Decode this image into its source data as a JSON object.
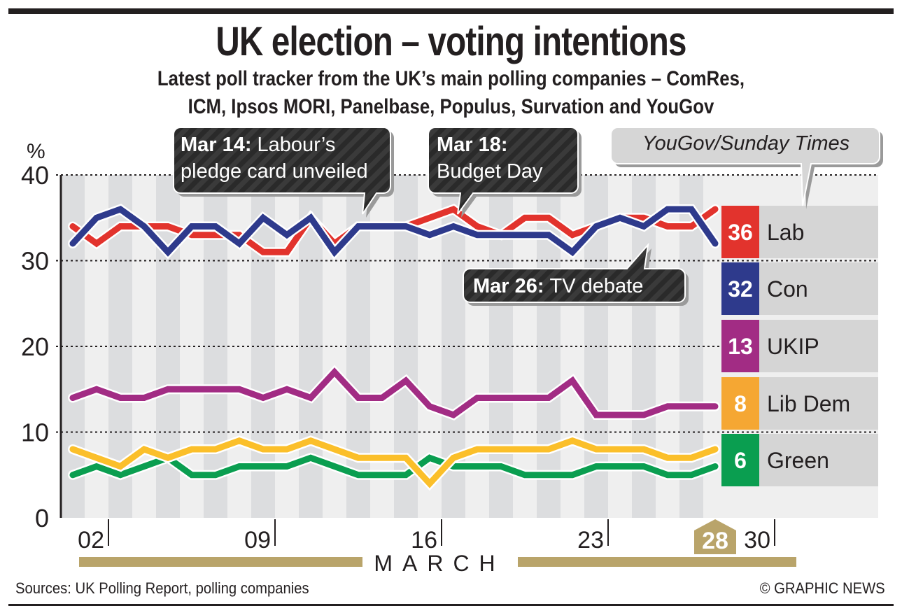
{
  "header": {
    "title": "UK election – voting intentions",
    "subtitle_line1": "Latest poll tracker from the UK’s main polling companies – ComRes,",
    "subtitle_line2": "ICM, Ipsos MORI, Panelbase, Populus, Survation and YouGov"
  },
  "footer": {
    "sources": "Sources: UK Polling Report, polling companies",
    "credit": "© GRAPHIC NEWS"
  },
  "colors": {
    "Lab": "#e2332d",
    "Con": "#2e3a8c",
    "UKIP": "#a22c84",
    "Lib Dem": "#fbbf2a",
    "Green": "#0a9e50",
    "Lib Dem box": "#f5a733",
    "accent_tan": "#b9a46a"
  },
  "chart_data": {
    "type": "line",
    "title": "UK election – voting intentions",
    "ylabel": "%",
    "xlabel": "MARCH",
    "ylim": [
      0,
      40
    ],
    "yticks": [
      0,
      10,
      20,
      30,
      40
    ],
    "grid": "dotted horizontal at 10, 20, 30, 40",
    "x": [
      1,
      2,
      3,
      4,
      5,
      6,
      7,
      8,
      9,
      10,
      11,
      12,
      13,
      14,
      15,
      16,
      17,
      18,
      19,
      20,
      21,
      22,
      23,
      24,
      25,
      26,
      27,
      28
    ],
    "xticks": [
      {
        "day": 2,
        "label": "02"
      },
      {
        "day": 9,
        "label": "09"
      },
      {
        "day": 16,
        "label": "16"
      },
      {
        "day": 23,
        "label": "23"
      },
      {
        "day": 30,
        "label": "30"
      }
    ],
    "current_day": {
      "day": 28,
      "label": "28"
    },
    "series": [
      {
        "name": "Lab",
        "latest": 36,
        "values": [
          34,
          32,
          34,
          34,
          34,
          33,
          33,
          33,
          31,
          31,
          35,
          32,
          34,
          34,
          34,
          35,
          36,
          34,
          33,
          35,
          35,
          33,
          34,
          35,
          35,
          34,
          34,
          36
        ]
      },
      {
        "name": "Con",
        "latest": 32,
        "values": [
          32,
          35,
          36,
          34,
          31,
          34,
          34,
          32,
          35,
          33,
          35,
          31,
          34,
          34,
          34,
          33,
          34,
          33,
          33,
          33,
          33,
          31,
          34,
          35,
          34,
          36,
          36,
          32
        ]
      },
      {
        "name": "UKIP",
        "latest": 13,
        "values": [
          14,
          15,
          14,
          14,
          15,
          15,
          15,
          15,
          14,
          15,
          14,
          17,
          14,
          14,
          16,
          13,
          12,
          14,
          14,
          14,
          14,
          16,
          12,
          12,
          12,
          13,
          13,
          13
        ]
      },
      {
        "name": "Lib Dem",
        "latest": 8,
        "values": [
          8,
          7,
          6,
          8,
          7,
          8,
          8,
          9,
          8,
          8,
          9,
          8,
          7,
          7,
          7,
          4,
          7,
          8,
          8,
          8,
          8,
          9,
          8,
          8,
          8,
          7,
          7,
          8
        ]
      },
      {
        "name": "Green",
        "latest": 6,
        "values": [
          5,
          6,
          5,
          6,
          7,
          5,
          5,
          6,
          6,
          6,
          7,
          6,
          5,
          5,
          5,
          7,
          6,
          6,
          6,
          5,
          5,
          5,
          6,
          6,
          6,
          5,
          5,
          6
        ]
      }
    ],
    "legend": [
      {
        "value": "36",
        "label": "Lab"
      },
      {
        "value": "32",
        "label": "Con"
      },
      {
        "value": "13",
        "label": "UKIP"
      },
      {
        "value": "8",
        "label": "Lib Dem"
      },
      {
        "value": "6",
        "label": "Green"
      }
    ],
    "legend_placement": "right",
    "annotations": [
      {
        "bold": "Mar 14:",
        "text_line1": "Labour’s",
        "text_line2": "pledge card unveiled",
        "day": 14
      },
      {
        "bold": "Mar 18:",
        "text_line1": "",
        "text_line2": "Budget Day",
        "day": 18
      },
      {
        "bold": "Mar 26:",
        "text_line1": "TV debate",
        "text_line2": "",
        "day": 26
      },
      {
        "bold": "",
        "text_line1": "YouGov/Sunday Times",
        "text_line2": "",
        "day": 28
      }
    ]
  }
}
